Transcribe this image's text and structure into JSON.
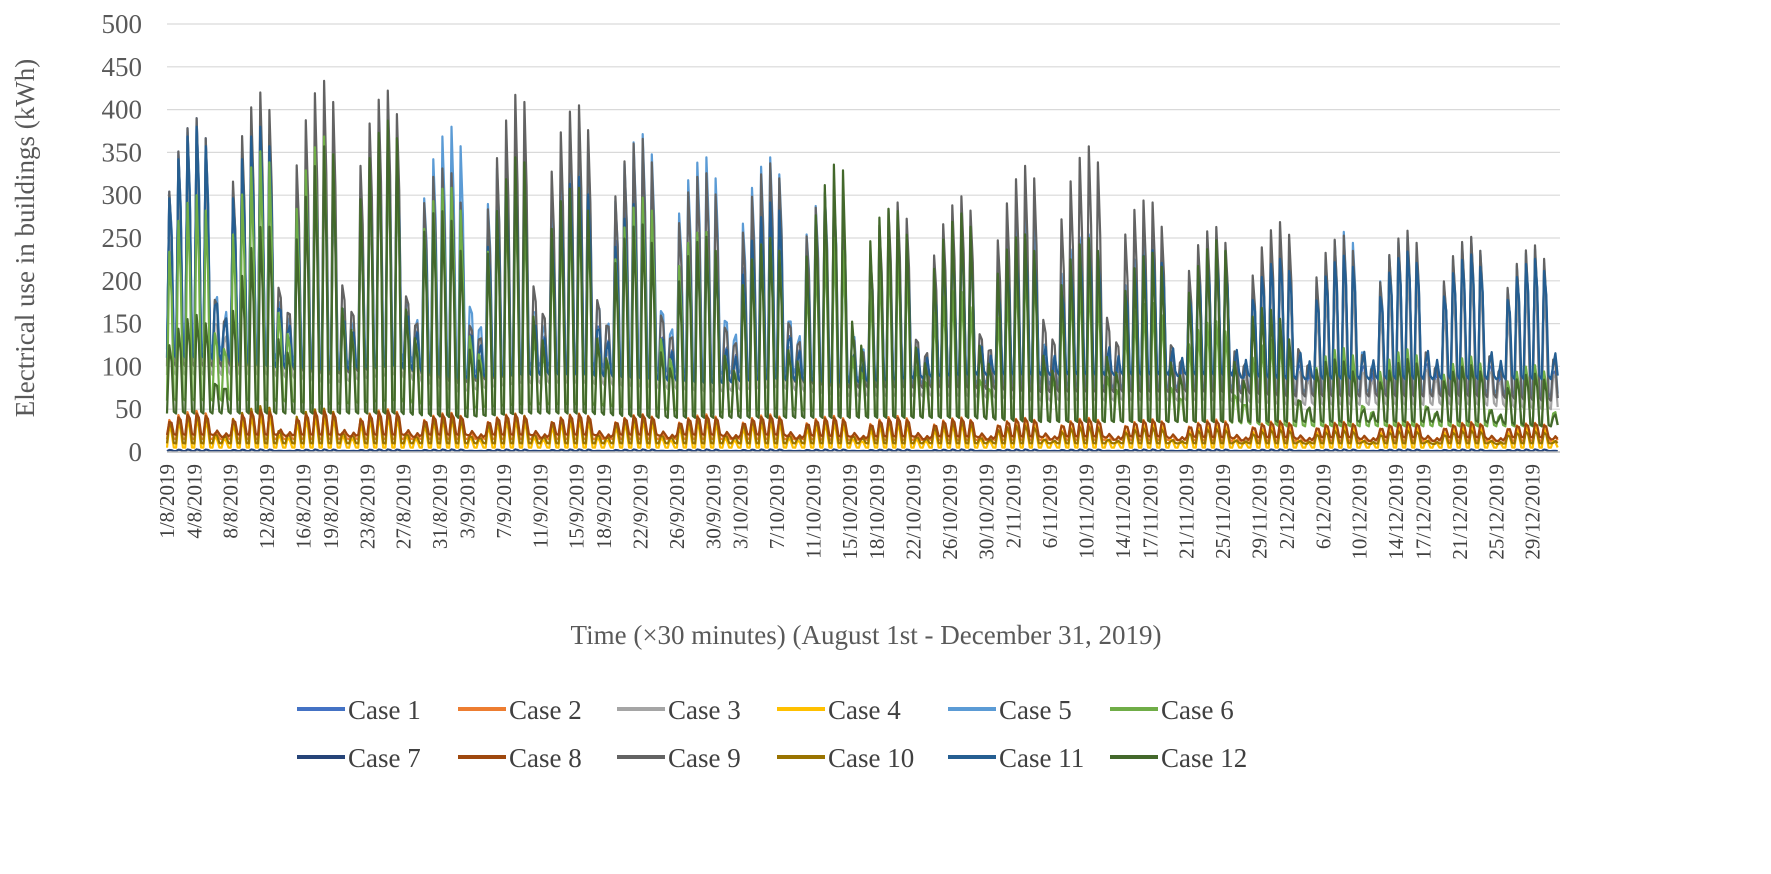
{
  "chart_data": {
    "type": "line",
    "title": "",
    "xlabel": "Time (×30 minutes) (August 1st - December 31, 2019)",
    "ylabel": "Electrical use in buildings (kWh)",
    "ylim": [
      0,
      500
    ],
    "yticks": [
      0,
      50,
      100,
      150,
      200,
      250,
      300,
      350,
      400,
      450,
      500
    ],
    "grid": true,
    "legend_position": "bottom",
    "x_tick_labels": [
      "1/8/2019",
      "4/8/2019",
      "8/8/2019",
      "12/8/2019",
      "16/8/2019",
      "19/8/2019",
      "23/8/2019",
      "27/8/2019",
      "31/8/2019",
      "3/9/2019",
      "7/9/2019",
      "11/9/2019",
      "15/9/2019",
      "18/9/2019",
      "22/9/2019",
      "26/9/2019",
      "30/9/2019",
      "3/10/2019",
      "7/10/2019",
      "11/10/2019",
      "15/10/2019",
      "18/10/2019",
      "22/10/2019",
      "26/10/2019",
      "30/10/2019",
      "2/11/2019",
      "6/11/2019",
      "10/11/2019",
      "14/11/2019",
      "17/11/2019",
      "21/11/2019",
      "25/11/2019",
      "29/11/2019",
      "2/12/2019",
      "6/12/2019",
      "10/12/2019",
      "14/12/2019",
      "17/12/2019",
      "21/12/2019",
      "25/12/2019",
      "29/12/2019"
    ],
    "x_tick_day_index": [
      0,
      3,
      7,
      11,
      15,
      18,
      22,
      26,
      30,
      33,
      37,
      41,
      45,
      48,
      52,
      56,
      60,
      63,
      67,
      71,
      75,
      78,
      82,
      86,
      90,
      93,
      97,
      101,
      105,
      108,
      112,
      116,
      120,
      123,
      127,
      131,
      135,
      138,
      142,
      146,
      150
    ],
    "total_days": 153,
    "weekly_peak_days": [
      4,
      11,
      18,
      25,
      32,
      39,
      46,
      53,
      60,
      67,
      74,
      81,
      88,
      95,
      102,
      109,
      116,
      123,
      130,
      137,
      144,
      151
    ],
    "series": [
      {
        "name": "Case 1",
        "color": "#4472C4",
        "weekly_peak_kwh": [
          390,
          395,
          340,
          375,
          300,
          340,
          330,
          300,
          250,
          310,
          240,
          240,
          250,
          240,
          240,
          235,
          230,
          220,
          215,
          225,
          220,
          205
        ],
        "weekly_base_kwh": [
          110,
          100,
          90,
          100,
          80,
          90,
          90,
          85,
          80,
          85,
          75,
          75,
          75,
          70,
          70,
          70,
          70,
          65,
          65,
          65,
          65,
          60
        ]
      },
      {
        "name": "Case 2",
        "color": "#ED7D31",
        "weekly_peak_kwh": [
          48,
          52,
          50,
          50,
          45,
          45,
          45,
          44,
          44,
          44,
          42,
          42,
          40,
          40,
          40,
          38,
          38,
          36,
          35,
          35,
          35,
          34
        ],
        "weekly_base_kwh": [
          15,
          15,
          15,
          15,
          15,
          15,
          15,
          15,
          15,
          15,
          14,
          14,
          14,
          14,
          14,
          14,
          13,
          13,
          13,
          13,
          13,
          13
        ]
      },
      {
        "name": "Case 3",
        "color": "#A5A5A5",
        "weekly_peak_kwh": [
          330,
          350,
          310,
          320,
          280,
          300,
          300,
          280,
          240,
          280,
          230,
          230,
          240,
          230,
          230,
          225,
          220,
          210,
          205,
          215,
          210,
          200
        ],
        "weekly_base_kwh": [
          90,
          90,
          80,
          90,
          70,
          80,
          80,
          75,
          70,
          75,
          65,
          65,
          65,
          60,
          60,
          60,
          60,
          55,
          55,
          55,
          55,
          50
        ]
      },
      {
        "name": "Case 4",
        "color": "#FFC000",
        "weekly_peak_kwh": [
          40,
          45,
          42,
          42,
          38,
          38,
          38,
          37,
          36,
          36,
          34,
          34,
          33,
          33,
          32,
          32,
          31,
          30,
          30,
          30,
          30,
          29
        ],
        "weekly_base_kwh": [
          5,
          5,
          5,
          5,
          5,
          5,
          5,
          5,
          5,
          5,
          5,
          5,
          5,
          5,
          5,
          5,
          5,
          5,
          5,
          5,
          5,
          5
        ]
      },
      {
        "name": "Case 5",
        "color": "#5B9BD5",
        "weekly_peak_kwh": [
          385,
          390,
          370,
          380,
          380,
          360,
          380,
          370,
          340,
          345,
          300,
          260,
          270,
          280,
          250,
          250,
          250,
          240,
          260,
          250,
          250,
          235
        ],
        "weekly_base_kwh": [
          120,
          110,
          100,
          110,
          90,
          100,
          100,
          95,
          90,
          95,
          85,
          80,
          80,
          80,
          75,
          75,
          75,
          70,
          70,
          70,
          70,
          65
        ]
      },
      {
        "name": "Case 6",
        "color": "#70AD47",
        "weekly_peak_kwh": [
          300,
          360,
          370,
          360,
          300,
          300,
          280,
          300,
          250,
          250,
          250,
          230,
          180,
          230,
          200,
          170,
          150,
          130,
          120,
          120,
          110,
          100
        ],
        "weekly_base_kwh": [
          60,
          60,
          55,
          60,
          50,
          55,
          55,
          50,
          45,
          50,
          45,
          40,
          40,
          40,
          35,
          35,
          35,
          30,
          30,
          30,
          30,
          30
        ]
      },
      {
        "name": "Case 7",
        "color": "#264478",
        "weekly_peak_kwh": [
          3,
          3,
          3,
          3,
          3,
          3,
          3,
          3,
          3,
          3,
          3,
          3,
          3,
          3,
          3,
          3,
          3,
          3,
          3,
          3,
          3,
          3
        ],
        "weekly_base_kwh": [
          1,
          1,
          1,
          1,
          1,
          1,
          1,
          1,
          1,
          1,
          1,
          1,
          1,
          1,
          1,
          1,
          1,
          1,
          1,
          1,
          1,
          1
        ]
      },
      {
        "name": "Case 8",
        "color": "#9E480E",
        "weekly_peak_kwh": [
          45,
          50,
          48,
          48,
          44,
          44,
          44,
          43,
          42,
          42,
          40,
          40,
          39,
          39,
          38,
          37,
          36,
          35,
          34,
          34,
          34,
          33
        ],
        "weekly_base_kwh": [
          20,
          20,
          20,
          20,
          20,
          20,
          20,
          20,
          20,
          20,
          18,
          18,
          18,
          18,
          18,
          18,
          17,
          17,
          17,
          17,
          17,
          17
        ]
      },
      {
        "name": "Case 9",
        "color": "#636363",
        "weekly_peak_kwh": [
          390,
          425,
          435,
          420,
          310,
          435,
          400,
          360,
          320,
          340,
          300,
          290,
          300,
          340,
          360,
          280,
          260,
          270,
          250,
          260,
          250,
          240
        ],
        "weekly_base_kwh": [
          100,
          100,
          90,
          100,
          80,
          90,
          90,
          85,
          80,
          85,
          75,
          75,
          75,
          70,
          70,
          70,
          70,
          65,
          65,
          65,
          65,
          60
        ]
      },
      {
        "name": "Case 10",
        "color": "#997300",
        "weekly_peak_kwh": [
          45,
          55,
          50,
          48,
          40,
          45,
          44,
          42,
          42,
          42,
          40,
          38,
          36,
          30,
          30,
          28,
          27,
          26,
          25,
          25,
          25,
          24
        ],
        "weekly_base_kwh": [
          10,
          10,
          10,
          10,
          10,
          10,
          10,
          10,
          10,
          10,
          10,
          10,
          10,
          10,
          10,
          10,
          10,
          10,
          10,
          10,
          10,
          10
        ]
      },
      {
        "name": "Case 11",
        "color": "#255E91",
        "weekly_peak_kwh": [
          380,
          380,
          330,
          360,
          290,
          330,
          320,
          290,
          240,
          300,
          230,
          240,
          240,
          240,
          240,
          235,
          230,
          225,
          230,
          235,
          230,
          225
        ],
        "weekly_base_kwh": [
          110,
          100,
          95,
          100,
          85,
          90,
          90,
          85,
          80,
          85,
          80,
          85,
          90,
          90,
          90,
          90,
          90,
          85,
          85,
          85,
          85,
          85
        ]
      },
      {
        "name": "Case 12",
        "color": "#43682B",
        "weekly_peak_kwh": [
          160,
          280,
          370,
          390,
          250,
          360,
          300,
          260,
          250,
          250,
          350,
          270,
          280,
          250,
          250,
          230,
          250,
          140,
          100,
          110,
          100,
          90
        ],
        "weekly_base_kwh": [
          45,
          45,
          45,
          45,
          40,
          45,
          45,
          40,
          40,
          40,
          40,
          40,
          40,
          35,
          35,
          35,
          35,
          35,
          35,
          35,
          35,
          30
        ]
      }
    ]
  }
}
